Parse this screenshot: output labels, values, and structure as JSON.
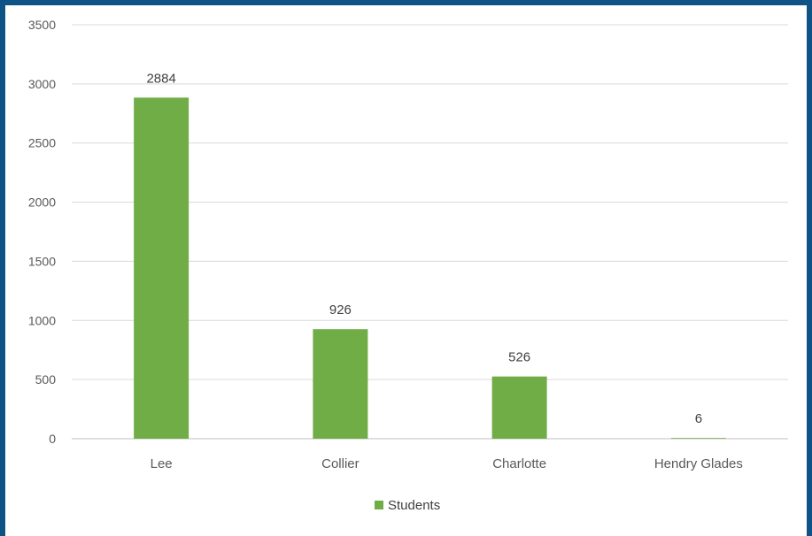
{
  "chart_data": {
    "type": "bar",
    "title": "",
    "xlabel": "",
    "ylabel": "",
    "categories": [
      "Lee",
      "Collier",
      "Charlotte",
      "Hendry Glades"
    ],
    "series": [
      {
        "name": "Students",
        "values": [
          2884,
          926,
          526,
          6
        ],
        "color": "#70ad47"
      }
    ],
    "data_labels": [
      "2884",
      "926",
      "526",
      "6"
    ],
    "yticks": [
      0,
      500,
      1000,
      1500,
      2000,
      2500,
      3000,
      3500
    ],
    "ytick_labels": [
      "0",
      "500",
      "1000",
      "1500",
      "2000",
      "2500",
      "3000",
      "3500"
    ],
    "ylim": [
      0,
      3500
    ],
    "grid": true,
    "legend_position": "bottom"
  },
  "colors": {
    "frame": "#0d5385",
    "background": "#ffffff",
    "bar": "#70ad47"
  }
}
